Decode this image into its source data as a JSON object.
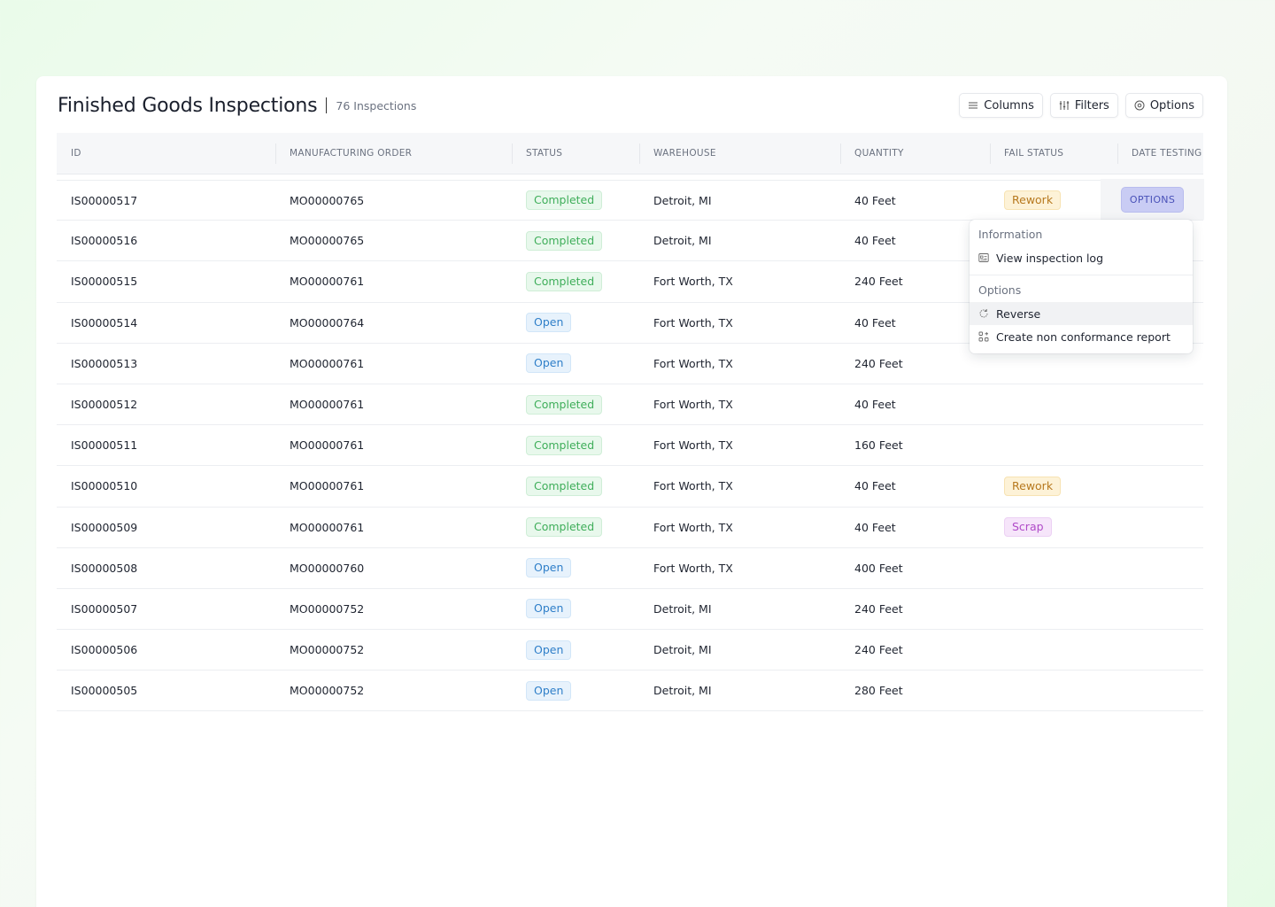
{
  "header": {
    "title": "Finished Goods Inspections",
    "count": "76 Inspections",
    "columns_label": "Columns",
    "filters_label": "Filters",
    "options_label": "Options"
  },
  "columns": [
    "ID",
    "MANUFACTURING ORDER",
    "STATUS",
    "WAREHOUSE",
    "QUANTITY",
    "FAIL STATUS",
    "DATE TESTING"
  ],
  "rows": [
    {
      "id": "IS00000517",
      "mo": "MO00000765",
      "status": "Completed",
      "warehouse": "Detroit, MI",
      "quantity": "40 Feet",
      "fail": "Rework"
    },
    {
      "id": "IS00000516",
      "mo": "MO00000765",
      "status": "Completed",
      "warehouse": "Detroit, MI",
      "quantity": "40 Feet",
      "fail": ""
    },
    {
      "id": "IS00000515",
      "mo": "MO00000761",
      "status": "Completed",
      "warehouse": "Fort Worth, TX",
      "quantity": "240 Feet",
      "fail": ""
    },
    {
      "id": "IS00000514",
      "mo": "MO00000764",
      "status": "Open",
      "warehouse": "Fort Worth, TX",
      "quantity": "40 Feet",
      "fail": ""
    },
    {
      "id": "IS00000513",
      "mo": "MO00000761",
      "status": "Open",
      "warehouse": "Fort Worth, TX",
      "quantity": "240 Feet",
      "fail": ""
    },
    {
      "id": "IS00000512",
      "mo": "MO00000761",
      "status": "Completed",
      "warehouse": "Fort Worth, TX",
      "quantity": "40 Feet",
      "fail": ""
    },
    {
      "id": "IS00000511",
      "mo": "MO00000761",
      "status": "Completed",
      "warehouse": "Fort Worth, TX",
      "quantity": "160 Feet",
      "fail": ""
    },
    {
      "id": "IS00000510",
      "mo": "MO00000761",
      "status": "Completed",
      "warehouse": "Fort Worth, TX",
      "quantity": "40 Feet",
      "fail": "Rework"
    },
    {
      "id": "IS00000509",
      "mo": "MO00000761",
      "status": "Completed",
      "warehouse": "Fort Worth, TX",
      "quantity": "40 Feet",
      "fail": "Scrap"
    },
    {
      "id": "IS00000508",
      "mo": "MO00000760",
      "status": "Open",
      "warehouse": "Fort Worth, TX",
      "quantity": "400 Feet",
      "fail": ""
    },
    {
      "id": "IS00000507",
      "mo": "MO00000752",
      "status": "Open",
      "warehouse": "Detroit, MI",
      "quantity": "240 Feet",
      "fail": ""
    },
    {
      "id": "IS00000506",
      "mo": "MO00000752",
      "status": "Open",
      "warehouse": "Detroit, MI",
      "quantity": "240 Feet",
      "fail": ""
    },
    {
      "id": "IS00000505",
      "mo": "MO00000752",
      "status": "Open",
      "warehouse": "Detroit, MI",
      "quantity": "280 Feet",
      "fail": ""
    }
  ],
  "row_options_label": "OPTIONS",
  "context_menu": {
    "group_info": "Information",
    "view_log": "View inspection log",
    "group_options": "Options",
    "reverse": "Reverse",
    "create_ncr": "Create non conformance report"
  },
  "colors": {
    "completed": "#3fae5a",
    "open": "#2f7fc9",
    "rework": "#b7791f",
    "scrap": "#b04ac8",
    "accent": "#4a52b8"
  }
}
